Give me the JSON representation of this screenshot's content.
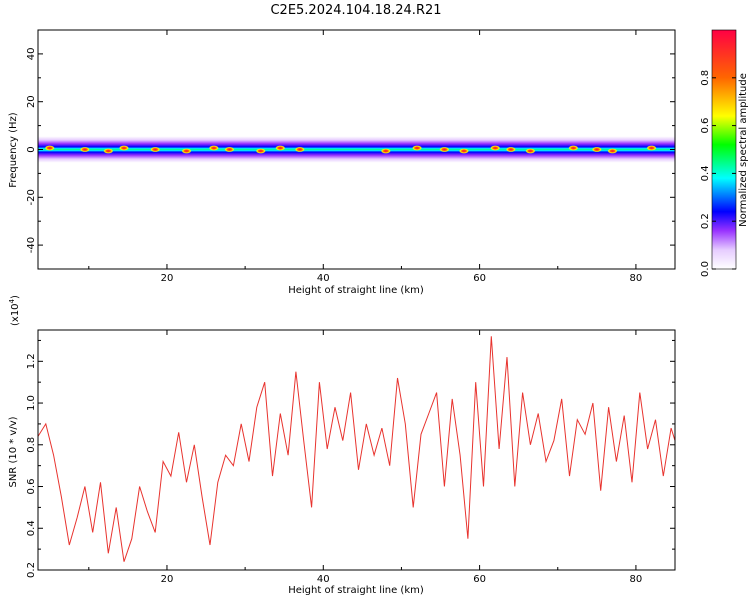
{
  "figure": {
    "title": "C2E5.2024.104.18.24.R21"
  },
  "chart_data": [
    {
      "type": "heatmap",
      "xlabel": "Height of straight line (km)",
      "ylabel": "Frequency (Hz)",
      "xlim": [
        3.5,
        85
      ],
      "ylim": [
        -50,
        50
      ],
      "x_ticks": [
        20,
        40,
        60,
        80
      ],
      "y_ticks": [
        -40,
        -20,
        0,
        20,
        40
      ],
      "band_center_hz": 0,
      "band_halfwidth_hz": 4,
      "colorbar": {
        "label": "Normalized spectral amplitude",
        "range": [
          0,
          1
        ],
        "ticks": [
          "0.0",
          "0.2",
          "0.4",
          "0.6",
          "0.8"
        ],
        "colors": [
          "#ffffff",
          "#e6ccff",
          "#9933ff",
          "#0000ff",
          "#00ffff",
          "#00ff00",
          "#ffff00",
          "#ff6600",
          "#ff0044"
        ]
      },
      "hotspots_km": [
        5,
        9.5,
        12.5,
        14.5,
        18.5,
        22.5,
        26,
        28,
        32,
        34.5,
        37,
        48,
        52,
        55.5,
        58,
        62,
        64,
        66.5,
        72,
        75,
        77,
        82
      ]
    },
    {
      "type": "line",
      "xlabel": "Height of straight line (km)",
      "ylabel": "SNR (10 * v/v)",
      "y_multiplier_label": "(x10^4)",
      "xlim": [
        3.5,
        85
      ],
      "ylim": [
        0.2,
        1.35
      ],
      "x_ticks": [
        20,
        40,
        60,
        80
      ],
      "y_ticks": [
        0.2,
        0.4,
        0.6,
        0.8,
        1.0,
        1.2
      ],
      "series": [
        {
          "color": "#e8332e",
          "x": [
            3.5,
            4.5,
            5.5,
            6.5,
            7.5,
            8.5,
            9.5,
            10.5,
            11.5,
            12.5,
            13.5,
            14.5,
            15.5,
            16.5,
            17.5,
            18.5,
            19.5,
            20.5,
            21.5,
            22.5,
            23.5,
            24.5,
            25.5,
            26.5,
            27.5,
            28.5,
            29.5,
            30.5,
            31.5,
            32.5,
            33.5,
            34.5,
            35.5,
            36.5,
            37.5,
            38.5,
            39.5,
            40.5,
            41.5,
            42.5,
            43.5,
            44.5,
            45.5,
            46.5,
            47.5,
            48.5,
            49.5,
            50.5,
            51.5,
            52.5,
            53.5,
            54.5,
            55.5,
            56.5,
            57.5,
            58.5,
            59.5,
            60.5,
            61.5,
            62.5,
            63.5,
            64.5,
            65.5,
            66.5,
            67.5,
            68.5,
            69.5,
            70.5,
            71.5,
            72.5,
            73.5,
            74.5,
            75.5,
            76.5,
            77.5,
            78.5,
            79.5,
            80.5,
            81.5,
            82.5,
            83.5,
            84.5,
            85
          ],
          "values": [
            0.84,
            0.9,
            0.75,
            0.55,
            0.32,
            0.45,
            0.6,
            0.38,
            0.62,
            0.28,
            0.5,
            0.24,
            0.35,
            0.6,
            0.48,
            0.38,
            0.72,
            0.65,
            0.86,
            0.62,
            0.8,
            0.55,
            0.32,
            0.62,
            0.75,
            0.7,
            0.9,
            0.72,
            0.98,
            1.1,
            0.65,
            0.95,
            0.75,
            1.15,
            0.82,
            0.5,
            1.1,
            0.78,
            0.98,
            0.82,
            1.05,
            0.68,
            0.9,
            0.75,
            0.88,
            0.7,
            1.12,
            0.9,
            0.5,
            0.85,
            0.95,
            1.05,
            0.6,
            1.02,
            0.75,
            0.35,
            1.1,
            0.6,
            1.32,
            0.78,
            1.22,
            0.6,
            1.05,
            0.8,
            0.95,
            0.72,
            0.82,
            1.02,
            0.65,
            0.92,
            0.85,
            1.0,
            0.58,
            0.98,
            0.72,
            0.94,
            0.62,
            1.05,
            0.78,
            0.92,
            0.65,
            0.88,
            0.82
          ]
        }
      ]
    }
  ]
}
